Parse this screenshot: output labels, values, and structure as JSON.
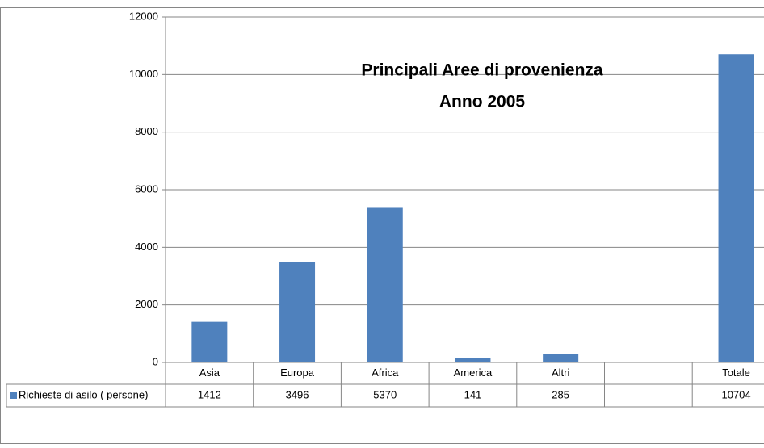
{
  "chart_data": {
    "type": "bar",
    "title": "Principali Aree di provenienza",
    "subtitle": "Anno 2005",
    "categories": [
      "Asia",
      "Europa",
      "Africa",
      "America",
      "Altri",
      null,
      "Totale"
    ],
    "series": [
      {
        "name": "Richieste di asilo ( persone)",
        "color": "#4f81bd",
        "values": [
          1412,
          3496,
          5370,
          141,
          285,
          null,
          10704
        ]
      }
    ],
    "ylim": [
      0,
      12000
    ],
    "yticks": [
      0,
      2000,
      4000,
      6000,
      8000,
      10000,
      12000
    ],
    "grid": true
  }
}
